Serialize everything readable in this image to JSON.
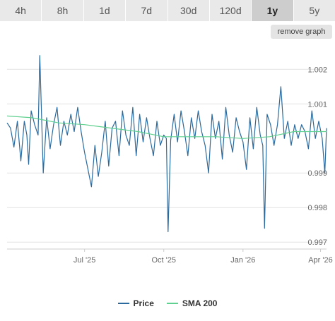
{
  "time_range": {
    "buttons": [
      {
        "label": "4h"
      },
      {
        "label": "8h"
      },
      {
        "label": "1d"
      },
      {
        "label": "7d"
      },
      {
        "label": "30d"
      },
      {
        "label": "120d"
      },
      {
        "label": "1y"
      },
      {
        "label": "5y"
      }
    ],
    "active": "1y"
  },
  "remove_graph_label": "remove graph",
  "colors": {
    "price": "#2a6a9e",
    "sma": "#5fd08f",
    "grid": "#e3e3e3",
    "axis_text": "#666666",
    "active_button": "#cdcdcd"
  },
  "chart_data": {
    "type": "line",
    "x_ticks": [
      "Jul '25",
      "Oct '25",
      "Jan '26",
      "Apr '26"
    ],
    "y_ticks": [
      "1.002",
      "1.001",
      "0.999",
      "0.998",
      "0.997"
    ],
    "ylim": [
      0.9968,
      1.0027
    ],
    "grid": true,
    "legend_position": "bottom",
    "series": [
      {
        "name": "Price",
        "x": [
          "2025-04-02",
          "2025-04-06",
          "2025-04-10",
          "2025-04-14",
          "2025-04-18",
          "2025-04-22",
          "2025-04-25",
          "2025-04-27",
          "2025-04-30",
          "2025-05-04",
          "2025-05-08",
          "2025-05-10",
          "2025-05-14",
          "2025-05-18",
          "2025-05-22",
          "2025-05-26",
          "2025-05-30",
          "2025-06-03",
          "2025-06-07",
          "2025-06-11",
          "2025-06-15",
          "2025-06-19",
          "2025-06-23",
          "2025-06-27",
          "2025-07-01",
          "2025-07-05",
          "2025-07-09",
          "2025-07-13",
          "2025-07-17",
          "2025-07-21",
          "2025-07-25",
          "2025-07-29",
          "2025-08-02",
          "2025-08-06",
          "2025-08-10",
          "2025-08-14",
          "2025-08-18",
          "2025-08-22",
          "2025-08-26",
          "2025-08-30",
          "2025-09-03",
          "2025-09-07",
          "2025-09-11",
          "2025-09-15",
          "2025-09-19",
          "2025-09-23",
          "2025-09-27",
          "2025-10-01",
          "2025-10-04",
          "2025-10-06",
          "2025-10-09",
          "2025-10-13",
          "2025-10-17",
          "2025-10-21",
          "2025-10-25",
          "2025-10-29",
          "2025-11-02",
          "2025-11-06",
          "2025-11-10",
          "2025-11-14",
          "2025-11-18",
          "2025-11-22",
          "2025-11-26",
          "2025-11-30",
          "2025-12-04",
          "2025-12-08",
          "2025-12-12",
          "2025-12-16",
          "2025-12-20",
          "2025-12-24",
          "2025-12-28",
          "2026-01-01",
          "2026-01-05",
          "2026-01-09",
          "2026-01-13",
          "2026-01-17",
          "2026-01-21",
          "2026-01-24",
          "2026-01-26",
          "2026-01-29",
          "2026-02-02",
          "2026-02-06",
          "2026-02-10",
          "2026-02-14",
          "2026-02-18",
          "2026-02-22",
          "2026-02-26",
          "2026-03-02",
          "2026-03-06",
          "2026-03-10",
          "2026-03-14",
          "2026-03-18",
          "2026-03-22",
          "2026-03-26",
          "2026-03-30",
          "2026-04-03",
          "2026-04-06",
          "2026-04-08"
        ],
        "values": [
          1.00045,
          1.0003,
          0.99975,
          1.0005,
          0.99935,
          1.0005,
          1.0001,
          0.99925,
          1.0008,
          1.0004,
          1.0001,
          1.0024,
          0.999,
          1.0006,
          0.9997,
          1.0004,
          1.0009,
          0.9998,
          1.0005,
          1.0001,
          1.0007,
          1.0002,
          1.0009,
          1.0002,
          0.9996,
          0.9991,
          0.9986,
          0.9998,
          0.9989,
          0.9996,
          1.0005,
          0.9992,
          1.0003,
          1.0005,
          0.9995,
          1.0008,
          1.0001,
          0.9998,
          1.0009,
          0.9995,
          1.0007,
          0.9999,
          1.0006,
          1.0,
          0.9995,
          1.0005,
          0.9998,
          1.0001,
          1.0,
          0.9973,
          0.99995,
          1.0007,
          0.9999,
          1.0008,
          1.0002,
          0.9995,
          1.0006,
          1.0,
          1.0008,
          1.0002,
          0.9998,
          0.999,
          1.0007,
          1.0,
          1.0005,
          0.9994,
          1.0009,
          1.0001,
          0.9996,
          1.0006,
          1.0002,
          0.9999,
          0.9991,
          1.0006,
          0.9997,
          1.0009,
          1.0001,
          0.9998,
          0.9974,
          1.0007,
          1.0004,
          0.9998,
          1.0004,
          1.0015,
          1.0,
          1.0005,
          0.9998,
          1.0004,
          1.0,
          1.0004,
          1.0002,
          0.9997,
          1.0008,
          1.0,
          1.0005,
          1.0,
          0.999,
          1.0003
        ]
      },
      {
        "name": "SMA 200",
        "x": [
          "2025-04-02",
          "2025-05-01",
          "2025-06-01",
          "2025-07-01",
          "2025-08-01",
          "2025-09-01",
          "2025-10-01",
          "2025-11-01",
          "2025-12-01",
          "2026-01-01",
          "2026-02-01",
          "2026-03-01",
          "2026-04-08"
        ],
        "values": [
          1.00065,
          1.0006,
          1.00045,
          1.0004,
          1.0003,
          1.0002,
          1.00005,
          1.00005,
          1.00005,
          1.0,
          1.00005,
          1.0002,
          1.0002
        ]
      }
    ]
  }
}
